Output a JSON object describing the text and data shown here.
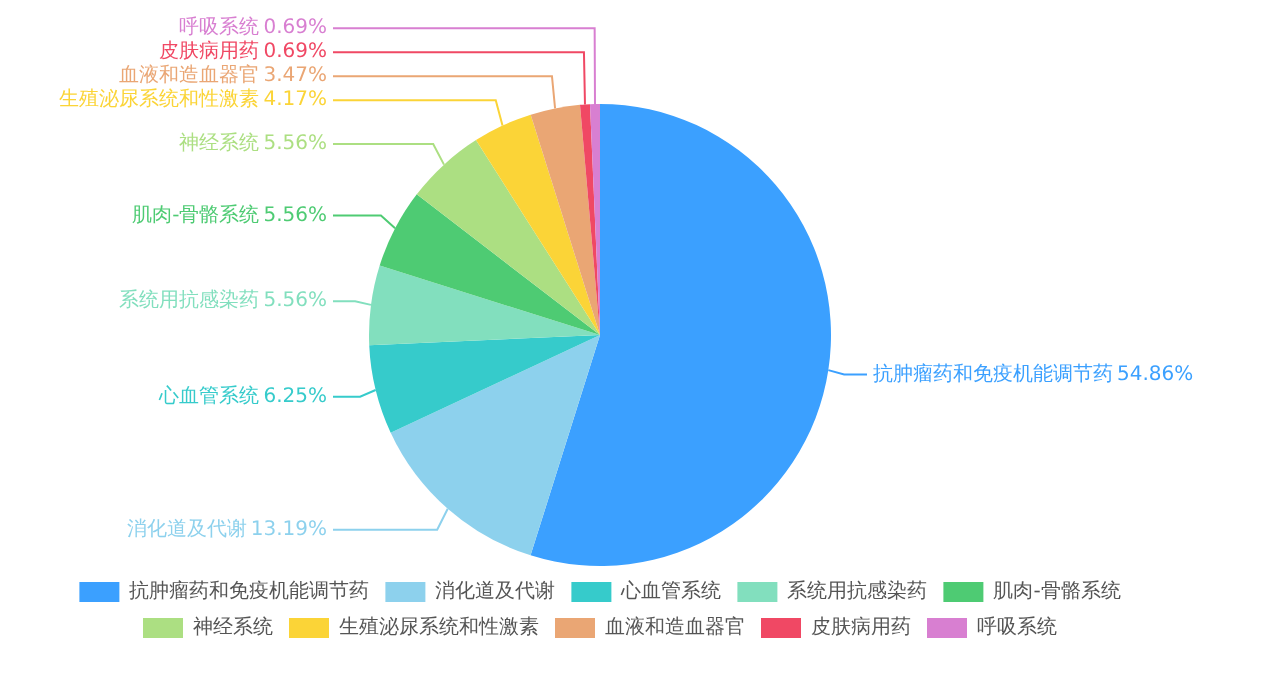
{
  "chart_data": {
    "type": "pie",
    "categories": [
      "抗肿瘤药和免疫机能调节药",
      "消化道及代谢",
      "心血管系统",
      "系统用抗感染药",
      "肌肉-骨骼系统",
      "神经系统",
      "生殖泌尿系统和性激素",
      "血液和造血器官",
      "皮肤病用药",
      "呼吸系统"
    ],
    "values": [
      54.86,
      13.19,
      6.25,
      5.56,
      5.56,
      5.56,
      4.17,
      3.47,
      0.69,
      0.69
    ],
    "colors": [
      "#3ba0ff",
      "#8dd1ed",
      "#36cbcb",
      "#82dfbe",
      "#4ecb73",
      "#acdf82",
      "#fbd437",
      "#eaa674",
      "#f04864",
      "#d87fd1"
    ],
    "value_labels": [
      "54.86%",
      "13.19%",
      "6.25%",
      "5.56%",
      "5.56%",
      "5.56%",
      "4.17%",
      "3.47%",
      "0.69%",
      "0.69%"
    ],
    "legend": "bottom"
  }
}
